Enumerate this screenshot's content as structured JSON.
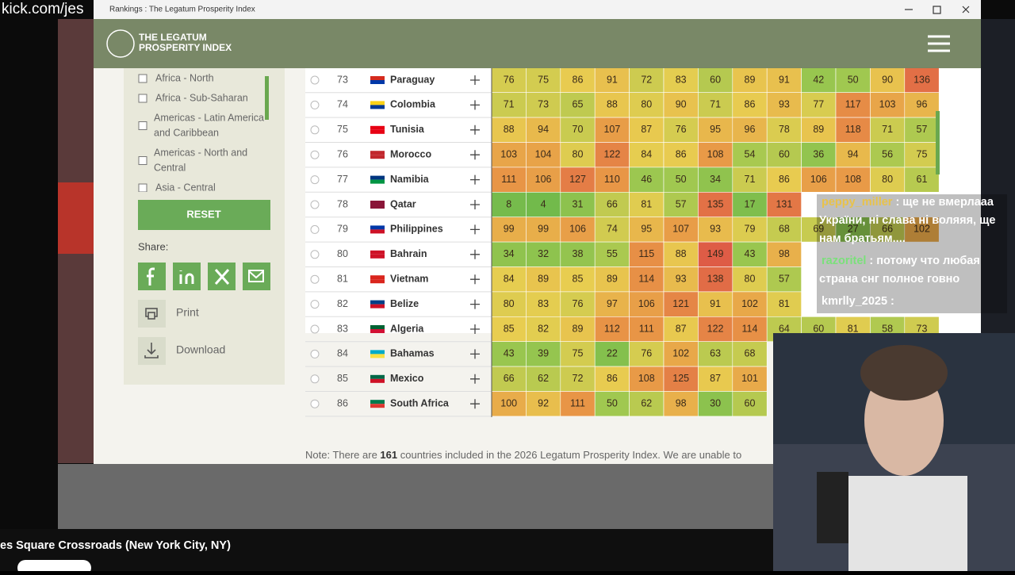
{
  "overlay_url": "kick.com/jes",
  "window_title": "Rankings : The Legatum Prosperity Index",
  "logo": [
    "THE LEGATUM",
    "PROSPERITY INDEX"
  ],
  "sidebar": {
    "filters": [
      "Africa - North",
      "Africa - Sub-Saharan",
      [
        "Americas - Latin America",
        "and Caribbean"
      ],
      [
        "Americas - North and",
        "Central"
      ],
      "Asia - Central"
    ],
    "reset": "RESET",
    "share": "Share:",
    "print": "Print",
    "download": "Download"
  },
  "table": {
    "rows": [
      {
        "rank": 73,
        "country": "Paraguay",
        "scores": [
          76,
          75,
          86,
          91,
          72,
          83,
          60,
          89,
          91,
          42,
          50,
          90,
          136
        ]
      },
      {
        "rank": 74,
        "country": "Colombia",
        "scores": [
          71,
          73,
          65,
          88,
          80,
          90,
          71,
          86,
          93,
          77,
          117,
          103,
          96
        ]
      },
      {
        "rank": 75,
        "country": "Tunisia",
        "scores": [
          88,
          94,
          70,
          107,
          87,
          76,
          95,
          96,
          78,
          89,
          118,
          71,
          57
        ]
      },
      {
        "rank": 76,
        "country": "Morocco",
        "scores": [
          103,
          104,
          80,
          122,
          84,
          86,
          108,
          54,
          60,
          36,
          94,
          56,
          75
        ]
      },
      {
        "rank": 77,
        "country": "Namibia",
        "scores": [
          111,
          106,
          127,
          110,
          46,
          50,
          34,
          71,
          86,
          106,
          108,
          80,
          61
        ]
      },
      {
        "rank": 78,
        "country": "Qatar",
        "scores": [
          8,
          4,
          31,
          66,
          81,
          57,
          135,
          17,
          131,
          null,
          null,
          null,
          null
        ]
      },
      {
        "rank": 79,
        "country": "Philippines",
        "scores": [
          99,
          99,
          106,
          74,
          95,
          107,
          93,
          79,
          68,
          69,
          27,
          66,
          102
        ]
      },
      {
        "rank": 80,
        "country": "Bahrain",
        "scores": [
          34,
          32,
          38,
          55,
          115,
          88,
          149,
          43,
          98,
          null,
          null,
          null,
          null
        ]
      },
      {
        "rank": 81,
        "country": "Vietnam",
        "scores": [
          84,
          89,
          85,
          89,
          114,
          93,
          138,
          80,
          57,
          null,
          null,
          null,
          null
        ]
      },
      {
        "rank": 82,
        "country": "Belize",
        "scores": [
          80,
          83,
          76,
          97,
          106,
          121,
          91,
          102,
          81,
          null,
          null,
          null,
          null
        ]
      },
      {
        "rank": 83,
        "country": "Algeria",
        "scores": [
          85,
          82,
          89,
          112,
          111,
          87,
          122,
          114,
          64,
          60,
          81,
          58,
          73
        ]
      },
      {
        "rank": 84,
        "country": "Bahamas",
        "scores": [
          43,
          39,
          75,
          22,
          76,
          102,
          63,
          68,
          null,
          null,
          null,
          null,
          null
        ]
      },
      {
        "rank": 85,
        "country": "Mexico",
        "scores": [
          66,
          62,
          72,
          86,
          108,
          125,
          87,
          101,
          null,
          null,
          null,
          null,
          null
        ]
      },
      {
        "rank": 86,
        "country": "South Africa",
        "scores": [
          100,
          92,
          111,
          50,
          62,
          98,
          30,
          60,
          null,
          null,
          null,
          null,
          null
        ]
      }
    ]
  },
  "note": {
    "before": "Note: There are ",
    "count": "161",
    "after": " countries included in the 2026 Legatum Prosperity Index. We are unable to"
  },
  "chat": [
    {
      "user": "peppy_miller",
      "lines": [
        ": ще не вмерлааа",
        "України, ні слава ні воляяя, ще",
        "нам братьям...."
      ]
    },
    {
      "user": "razoritel",
      "lines": [
        ": потому что любая",
        "страна снг полное говно"
      ]
    },
    {
      "user": "kmrlly_2025",
      "lines": [
        ":"
      ]
    }
  ],
  "stream_title": "es Square Crossroads (New York City, NY)"
}
